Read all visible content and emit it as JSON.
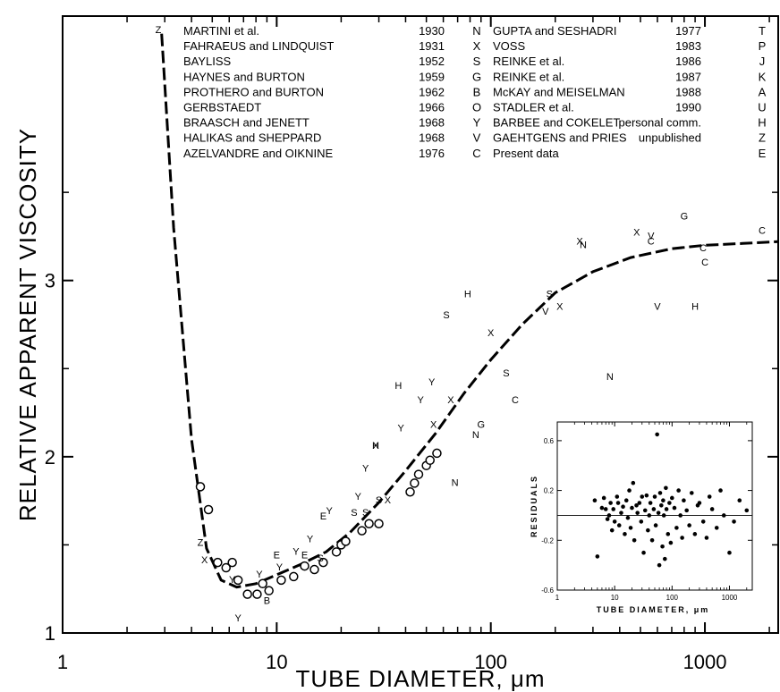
{
  "chart_data": [
    {
      "type": "scatter",
      "xlabel": "TUBE DIAMETER, μm",
      "ylabel": "RELATIVE APPARENT VISCOSITY",
      "xscale": "log",
      "xlim": [
        1,
        2200
      ],
      "ylim": [
        1,
        4.5
      ],
      "xticks": [
        "1",
        "10",
        "100",
        "1000"
      ],
      "yticks": [
        "1",
        "2",
        "3"
      ],
      "legend_position": "top",
      "legend": [
        {
          "author": "MARTINI et al.",
          "year": "1930",
          "symbol": "N"
        },
        {
          "author": "FAHRAEUS and LINDQUIST",
          "year": "1931",
          "symbol": "X"
        },
        {
          "author": "BAYLISS",
          "year": "1952",
          "symbol": "S"
        },
        {
          "author": "HAYNES and BURTON",
          "year": "1959",
          "symbol": "G"
        },
        {
          "author": "PROTHERO and BURTON",
          "year": "1962",
          "symbol": "B"
        },
        {
          "author": "GERBSTAEDT",
          "year": "1966",
          "symbol": "O"
        },
        {
          "author": "BRAASCH and JENETT",
          "year": "1968",
          "symbol": "Y"
        },
        {
          "author": "HALIKAS and SHEPPARD",
          "year": "1968",
          "symbol": "V"
        },
        {
          "author": "AZELVANDRE and OIKNINE",
          "year": "1976",
          "symbol": "C"
        },
        {
          "author": "GUPTA and SESHADRI",
          "year": "1977",
          "symbol": "T"
        },
        {
          "author": "VOSS",
          "year": "1983",
          "symbol": "P"
        },
        {
          "author": "REINKE et al.",
          "year": "1986",
          "symbol": "J"
        },
        {
          "author": "REINKE et al.",
          "year": "1987",
          "symbol": "K"
        },
        {
          "author": "McKAY and MEISELMAN",
          "year": "1988",
          "symbol": "A"
        },
        {
          "author": "STADLER et al.",
          "year": "1990",
          "symbol": "U"
        },
        {
          "author": "BARBEE and COKELET",
          "year": "personal comm.",
          "symbol": "H"
        },
        {
          "author": "GAEHTGENS and PRIES",
          "year": "unpublished",
          "symbol": "Z"
        },
        {
          "author": "Present data",
          "year": "",
          "symbol": "E"
        }
      ],
      "fit_curve": {
        "style": "dashed",
        "x": [
          2.9,
          3.3,
          4.0,
          4.7,
          5.5,
          6.5,
          8,
          10,
          13,
          17,
          22,
          30,
          40,
          55,
          75,
          100,
          140,
          200,
          300,
          450,
          700,
          1000,
          1500,
          2200
        ],
        "y": [
          4.4,
          3.3,
          2.1,
          1.48,
          1.3,
          1.26,
          1.28,
          1.33,
          1.39,
          1.46,
          1.57,
          1.74,
          1.92,
          2.13,
          2.36,
          2.55,
          2.75,
          2.93,
          3.05,
          3.13,
          3.18,
          3.2,
          3.21,
          3.22
        ]
      },
      "series": [
        {
          "symbol": "O",
          "x": [
            4.4,
            4.8,
            5.3,
            5.8,
            6.2,
            6.6,
            7.3,
            8.1,
            8.6,
            9.2,
            10.5,
            12,
            13.5,
            15,
            16.5,
            19,
            20,
            21,
            25,
            27,
            30,
            42,
            44,
            46,
            50,
            52,
            56
          ],
          "y": [
            1.83,
            1.7,
            1.4,
            1.37,
            1.4,
            1.3,
            1.22,
            1.22,
            1.28,
            1.24,
            1.3,
            1.32,
            1.38,
            1.36,
            1.4,
            1.46,
            1.5,
            1.52,
            1.58,
            1.62,
            1.62,
            1.8,
            1.85,
            1.9,
            1.95,
            1.98,
            2.02
          ]
        },
        {
          "symbol": "Y",
          "x": [
            6.2,
            6.6,
            8.3,
            10.3,
            12.3,
            14.3,
            17.6,
            24,
            26,
            38,
            47,
            53
          ],
          "y": [
            1.3,
            1.08,
            1.33,
            1.37,
            1.46,
            1.53,
            1.69,
            1.77,
            1.93,
            2.16,
            2.32,
            2.42
          ]
        },
        {
          "symbol": "Z",
          "x": [
            2.8,
            4.4
          ],
          "y": [
            4.42,
            1.51
          ]
        },
        {
          "symbol": "X",
          "x": [
            4.6,
            29,
            33,
            54,
            65,
            100,
            210,
            260,
            480
          ],
          "y": [
            1.41,
            2.06,
            1.75,
            2.18,
            2.32,
            2.7,
            2.85,
            3.22,
            3.27
          ]
        },
        {
          "symbol": "E",
          "x": [
            10,
            13.5,
            16.5
          ],
          "y": [
            1.44,
            1.44,
            1.66
          ]
        },
        {
          "symbol": "S",
          "x": [
            16,
            23,
            26,
            30,
            62,
            118,
            188
          ],
          "y": [
            1.42,
            1.68,
            1.68,
            1.75,
            2.8,
            2.47,
            2.92
          ]
        },
        {
          "symbol": "B",
          "x": [
            9.0
          ],
          "y": [
            1.18
          ]
        },
        {
          "symbol": "N",
          "x": [
            68,
            85,
            270,
            360
          ],
          "y": [
            1.85,
            2.12,
            3.2,
            2.45
          ]
        },
        {
          "symbol": "H",
          "x": [
            29,
            37,
            78,
            900
          ],
          "y": [
            2.06,
            2.4,
            2.92,
            2.85
          ]
        },
        {
          "symbol": "V",
          "x": [
            180,
            560,
            600
          ],
          "y": [
            2.82,
            3.25,
            2.85
          ]
        },
        {
          "symbol": "C",
          "x": [
            130,
            560,
            980,
            1000,
            1850
          ],
          "y": [
            2.32,
            3.22,
            3.18,
            3.1,
            3.28
          ]
        },
        {
          "symbol": "G",
          "x": [
            90,
            800
          ],
          "y": [
            2.18,
            3.36
          ]
        }
      ]
    },
    {
      "type": "scatter",
      "ylabel": "RESIDUALS",
      "xlabel": "TUBE DIAMETER, μm",
      "xscale": "log",
      "xlim": [
        1,
        2500
      ],
      "ylim": [
        -0.6,
        0.75
      ],
      "xticks": [
        "1",
        "10",
        "100",
        "1000"
      ],
      "yticks": [
        "0.6",
        "0.2",
        "-0.2",
        "-0.6"
      ],
      "points": {
        "x": [
          4.5,
          5,
          6,
          6.5,
          7,
          7.5,
          8,
          8.5,
          9,
          9.5,
          10,
          11,
          11.5,
          12,
          13,
          14,
          15,
          16,
          17,
          18,
          19,
          20,
          21,
          22,
          24,
          25,
          27,
          29,
          30,
          32,
          34,
          36,
          38,
          40,
          42,
          45,
          48,
          50,
          52,
          55,
          58,
          60,
          62,
          65,
          68,
          70,
          72,
          75,
          78,
          80,
          85,
          90,
          95,
          100,
          110,
          120,
          130,
          140,
          150,
          160,
          180,
          200,
          220,
          250,
          280,
          300,
          350,
          400,
          450,
          500,
          600,
          700,
          800,
          1000,
          1200,
          1500,
          2000
        ],
        "y": [
          0.12,
          -0.33,
          0.06,
          0.14,
          0.05,
          -0.03,
          0.0,
          0.1,
          -0.12,
          0.05,
          -0.05,
          0.15,
          0.1,
          -0.08,
          0.02,
          0.07,
          -0.15,
          0.12,
          -0.02,
          0.2,
          -0.1,
          0.06,
          0.26,
          -0.2,
          0.08,
          0.02,
          0.1,
          -0.05,
          0.15,
          -0.3,
          0.04,
          0.16,
          -0.12,
          0.0,
          0.1,
          -0.2,
          0.05,
          0.15,
          -0.08,
          0.65,
          0.02,
          -0.4,
          0.18,
          0.08,
          -0.25,
          0.12,
          0.0,
          -0.35,
          0.22,
          0.05,
          -0.15,
          0.1,
          -0.22,
          0.14,
          0.06,
          -0.1,
          0.2,
          0.0,
          -0.18,
          0.12,
          0.04,
          -0.08,
          0.18,
          -0.15,
          0.08,
          0.1,
          -0.05,
          -0.18,
          0.15,
          0.05,
          -0.1,
          0.2,
          0.0,
          -0.3,
          -0.05,
          0.12,
          0.04
        ]
      }
    }
  ]
}
